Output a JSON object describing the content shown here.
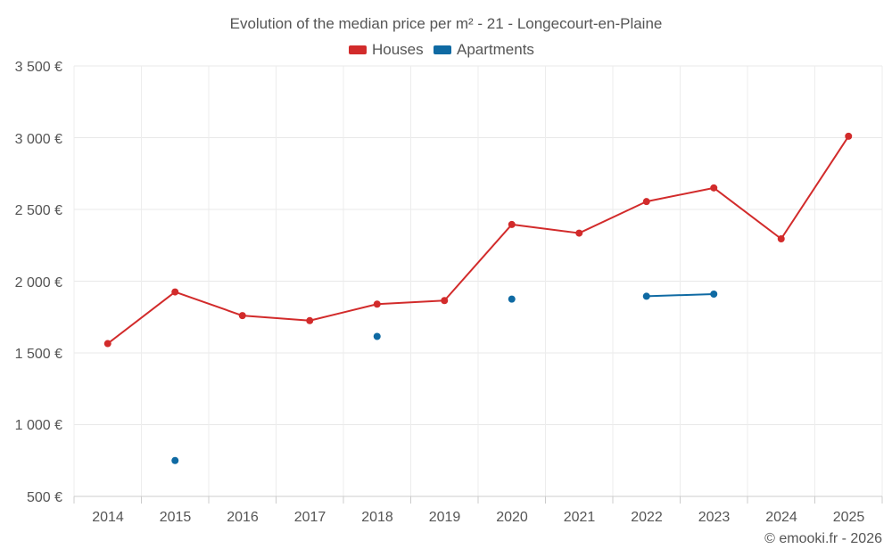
{
  "chart_data": {
    "type": "line",
    "title": "Evolution of the median price per m² - 21 - Longecourt-en-Plaine",
    "categories": [
      "2014",
      "2015",
      "2016",
      "2017",
      "2018",
      "2019",
      "2020",
      "2021",
      "2022",
      "2023",
      "2024",
      "2025"
    ],
    "y_ticks": [
      "500 €",
      "1 000 €",
      "1 500 €",
      "2 000 €",
      "2 500 €",
      "3 000 €",
      "3 500 €"
    ],
    "y_tick_values": [
      500,
      1000,
      1500,
      2000,
      2500,
      3000,
      3500
    ],
    "ylim": [
      500,
      3500
    ],
    "grid": true,
    "legend_position": "top-center",
    "xlabel": "",
    "ylabel": "",
    "series": [
      {
        "name": "Houses",
        "color": "#d22b2b",
        "values": [
          1565,
          1925,
          1760,
          1725,
          1840,
          1865,
          2395,
          2335,
          2555,
          2650,
          2295,
          3010
        ]
      },
      {
        "name": "Apartments",
        "color": "#0f6aa3",
        "values": [
          null,
          750,
          null,
          null,
          1615,
          null,
          1875,
          null,
          1895,
          1910,
          null,
          null
        ]
      }
    ],
    "credit": "© emooki.fr - 2026"
  }
}
